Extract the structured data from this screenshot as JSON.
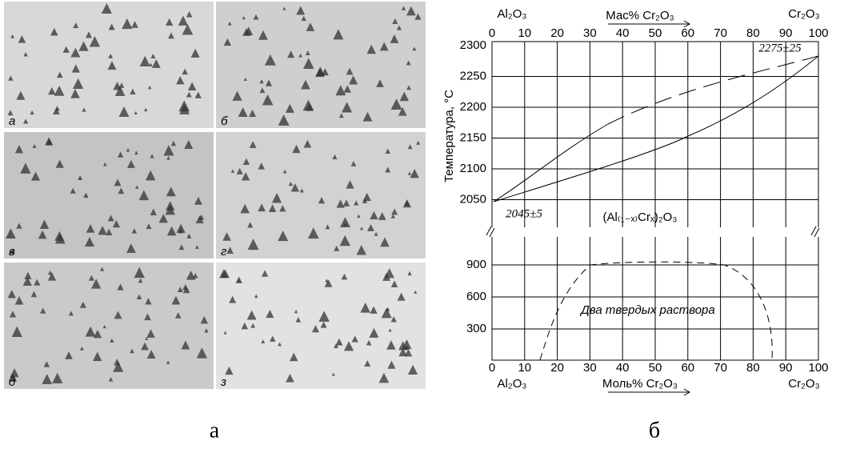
{
  "panels": {
    "a": {
      "label": "а",
      "photos": [
        "а",
        "б",
        "в",
        "г",
        "д",
        "з"
      ]
    },
    "b": {
      "label": "б",
      "top_left": "Al₂O₃",
      "top_right": "Cr₂O₃",
      "top_axis": "Мас% Cr₂O₃",
      "top_ticks": [
        "0",
        "10",
        "20",
        "30",
        "40",
        "50",
        "60",
        "70",
        "80",
        "90",
        "100"
      ],
      "y_label": "Температура, °C",
      "y_ticks_upper": [
        "2300",
        "2250",
        "2200",
        "2150",
        "2100",
        "2050"
      ],
      "y_ticks_lower": [
        "900",
        "600",
        "300"
      ],
      "bottom_left": "Al₂O₃",
      "bottom_right": "Cr₂O₃",
      "bottom_axis": "Моль% Cr₂O₃",
      "bottom_ticks": [
        "0",
        "10",
        "20",
        "30",
        "40",
        "50",
        "60",
        "70",
        "80",
        "90",
        "100"
      ],
      "annotations": {
        "top_point": "2275±25",
        "left_point": "2045±5",
        "solid_solution": "(Al₍₁₋ₓ₎Crₓ)₂O₃",
        "two_phase": "Два твердых раствора"
      }
    }
  }
}
